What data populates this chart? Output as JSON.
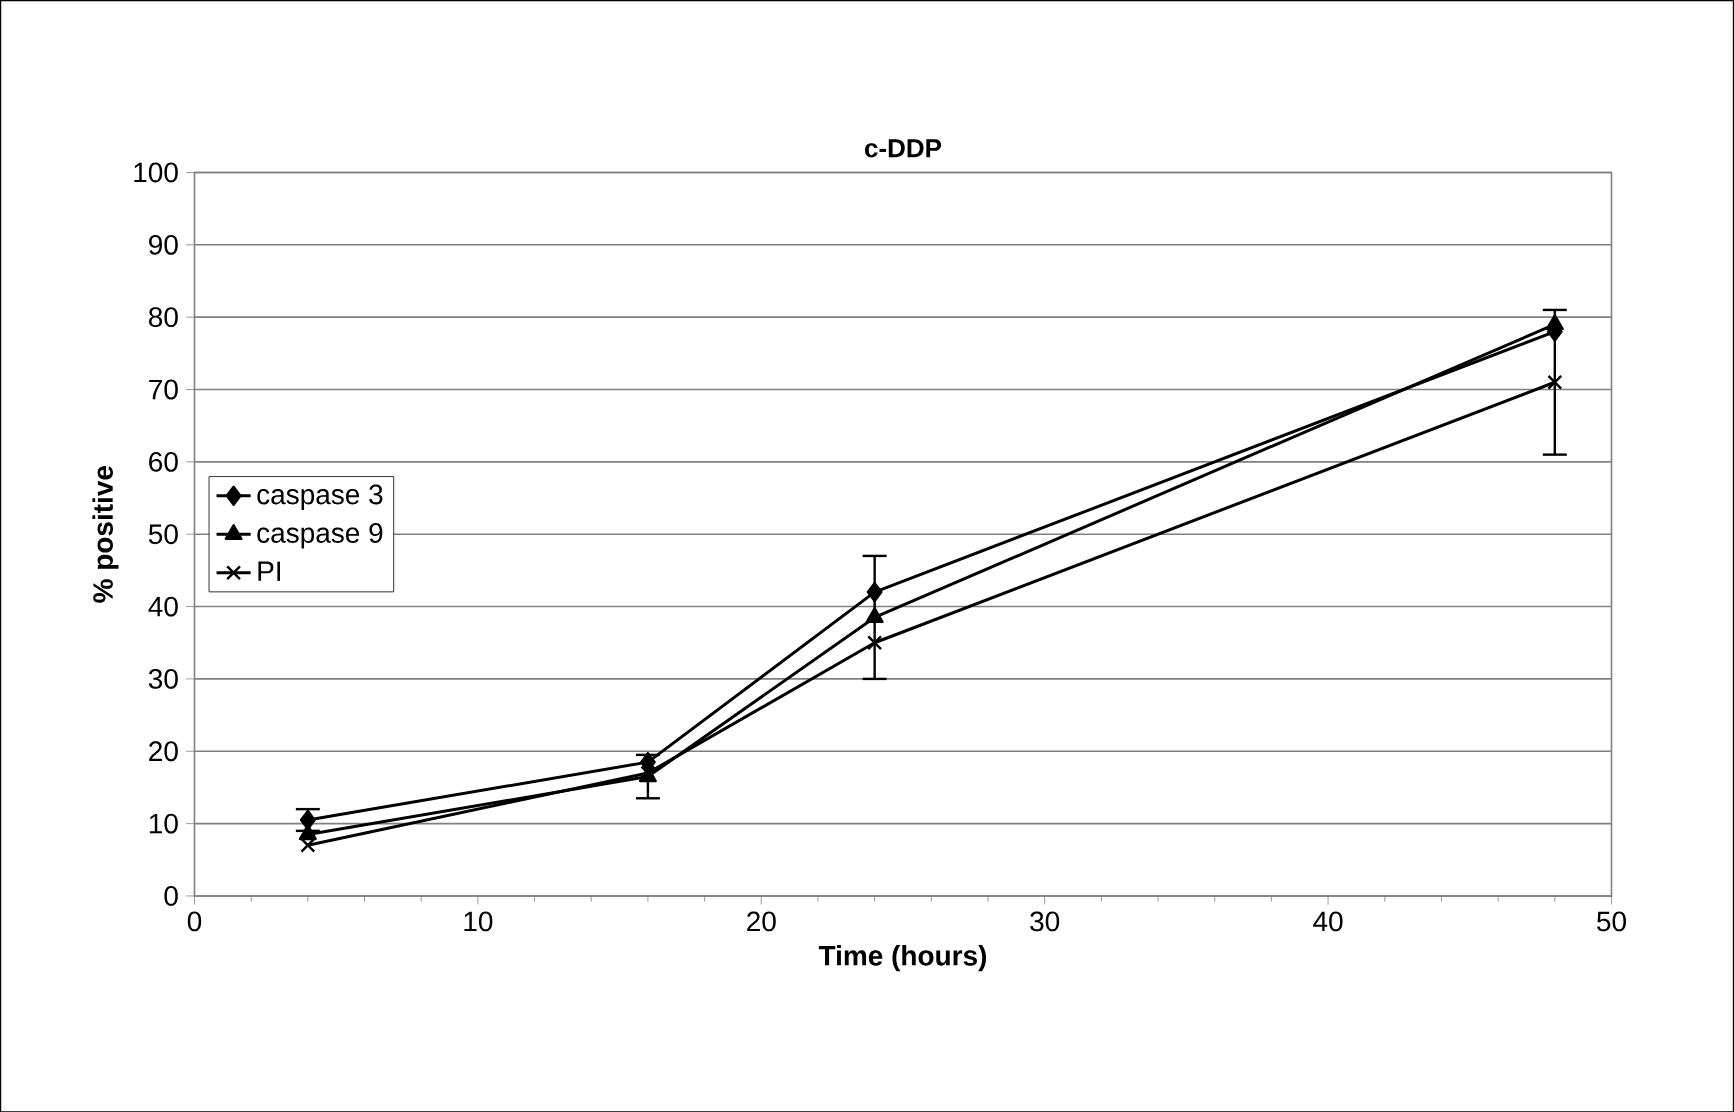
{
  "chart_data": {
    "type": "line",
    "title": "c-DDP",
    "xlabel": "Time (hours)",
    "ylabel": "% positive",
    "x": [
      4,
      16,
      24,
      48
    ],
    "series": [
      {
        "name": "caspase 3",
        "color": "#000000",
        "marker": "diamond",
        "values": [
          10.5,
          18.5,
          42,
          78
        ],
        "errors": [
          1.5,
          null,
          null,
          null
        ]
      },
      {
        "name": "caspase 9",
        "color": "#000000",
        "marker": "triangle",
        "values": [
          8.5,
          16.5,
          38.5,
          79
        ],
        "errors": [
          null,
          3,
          8.5,
          null
        ]
      },
      {
        "name": "PI",
        "color": "#000000",
        "marker": "cross",
        "values": [
          7,
          17,
          35,
          71
        ],
        "errors": [
          null,
          null,
          null,
          10
        ]
      }
    ],
    "xlim": [
      0,
      50
    ],
    "xticks": [
      0,
      10,
      20,
      30,
      40,
      50
    ],
    "ylim": [
      0,
      100
    ],
    "yticks": [
      0,
      10,
      20,
      30,
      40,
      50,
      60,
      70,
      80,
      90,
      100
    ],
    "grid": "y",
    "legend": "left",
    "line_style": "solid"
  }
}
